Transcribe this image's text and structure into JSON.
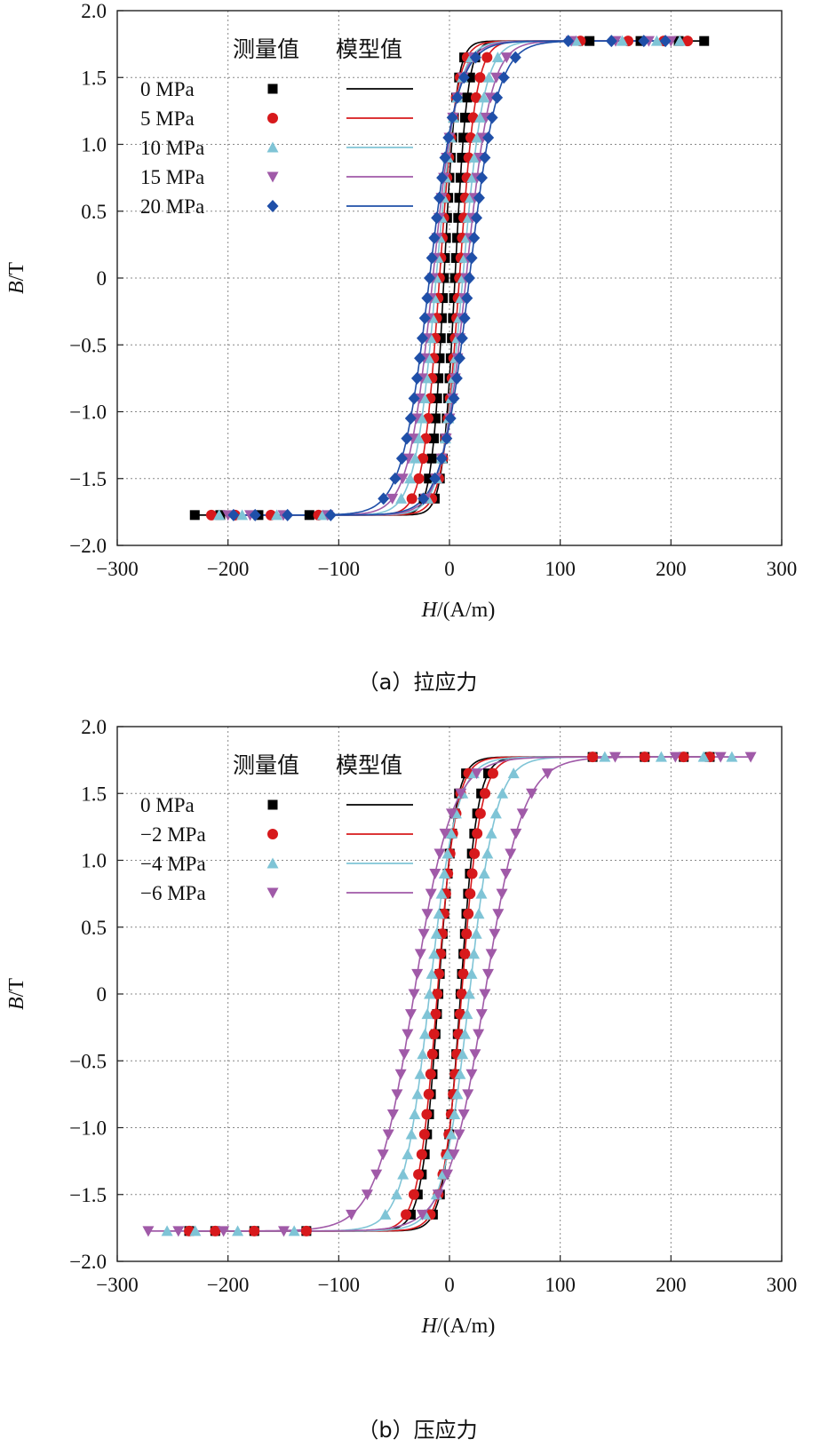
{
  "chart_data": [
    {
      "type": "line",
      "caption": "（a）拉应力",
      "xlabel_italic": "H",
      "xlabel_rest": "/(A/m)",
      "ylabel_italic": "B",
      "ylabel_rest": "/T",
      "xlim": [
        -300,
        300
      ],
      "ylim": [
        -2.0,
        2.0
      ],
      "xticks": [
        "−300",
        "−200",
        "−100",
        "0",
        "100",
        "200",
        "300"
      ],
      "yticks": [
        "2.0",
        "1.5",
        "1.0",
        "0.5",
        "0",
        "−0.5",
        "−1.0",
        "−1.5",
        "−2.0"
      ],
      "grid": true,
      "legend_location": "top-left",
      "legend_header_measured": "测量值",
      "legend_header_model": "模型值",
      "series": [
        {
          "name": "0 MPa",
          "color": "#000000",
          "marker": "square",
          "hmax": 230,
          "bsat": 1.8,
          "hc": 5,
          "a": 11
        },
        {
          "name": "5 MPa",
          "color": "#d7191c",
          "marker": "circle",
          "hmax": 215,
          "bsat": 1.8,
          "hc": 9,
          "a": 15
        },
        {
          "name": "10 MPa",
          "color": "#7fc4d6",
          "marker": "triangle-up",
          "hmax": 208,
          "bsat": 1.8,
          "hc": 12,
          "a": 19
        },
        {
          "name": "15 MPa",
          "color": "#a05aa8",
          "marker": "triangle-down",
          "hmax": 200,
          "bsat": 1.8,
          "hc": 15,
          "a": 22
        },
        {
          "name": "20 MPa",
          "color": "#1f4fa8",
          "marker": "diamond",
          "hmax": 195,
          "bsat": 1.8,
          "hc": 18,
          "a": 25
        }
      ]
    },
    {
      "type": "line",
      "caption": "（b）压应力",
      "xlabel_italic": "H",
      "xlabel_rest": "/(A/m)",
      "ylabel_italic": "B",
      "ylabel_rest": "/T",
      "xlim": [
        -300,
        300
      ],
      "ylim": [
        -2.0,
        2.0
      ],
      "xticks": [
        "−300",
        "−200",
        "−100",
        "0",
        "100",
        "200",
        "300"
      ],
      "yticks": [
        "2.0",
        "1.5",
        "1.0",
        "0.5",
        "0",
        "−0.5",
        "−1.0",
        "−1.5",
        "−2.0"
      ],
      "grid": true,
      "legend_location": "top-left",
      "legend_header_measured": "测量值",
      "legend_header_model": "模型值",
      "series": [
        {
          "name": "0 MPa",
          "color": "#000000",
          "marker": "square",
          "hmax": 235,
          "bsat": 1.8,
          "hc": 10,
          "a": 15
        },
        {
          "name": "−2 MPa",
          "color": "#d7191c",
          "marker": "circle",
          "hmax": 235,
          "bsat": 1.8,
          "hc": 11,
          "a": 17
        },
        {
          "name": "−4 MPa",
          "color": "#7fc4d6",
          "marker": "triangle-up",
          "hmax": 255,
          "bsat": 1.8,
          "hc": 18,
          "a": 24
        },
        {
          "name": "−6 MPa",
          "color": "#a05aa8",
          "marker": "triangle-down",
          "hmax": 272,
          "bsat": 1.8,
          "hc": 32,
          "a": 34
        }
      ]
    }
  ]
}
